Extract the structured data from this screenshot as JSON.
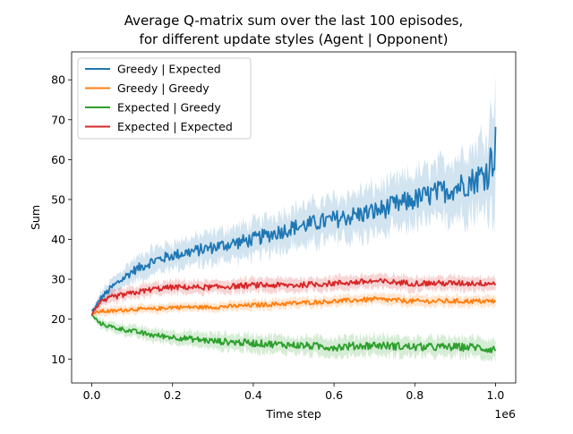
{
  "chart_data": {
    "type": "line",
    "title": [
      "Average Q-matrix sum over the last 100 episodes,",
      "for different update styles (Agent | Opponent)"
    ],
    "xlabel": "Time step",
    "ylabel": "Sum",
    "x_offset_text": "1e6",
    "xlim": [
      -0.05,
      1.05
    ],
    "ylim": [
      4,
      87
    ],
    "x_ticks": [
      0.0,
      0.2,
      0.4,
      0.6,
      0.8,
      1.0
    ],
    "x_tick_labels": [
      "0.0",
      "0.2",
      "0.4",
      "0.6",
      "0.8",
      "1.0"
    ],
    "y_ticks": [
      10,
      20,
      30,
      40,
      50,
      60,
      70,
      80
    ],
    "y_tick_labels": [
      "10",
      "20",
      "30",
      "40",
      "50",
      "60",
      "70",
      "80"
    ],
    "grid": false,
    "legend_position": "top-left",
    "x": [
      0.0,
      0.01,
      0.02,
      0.05,
      0.1,
      0.15,
      0.2,
      0.3,
      0.4,
      0.5,
      0.6,
      0.7,
      0.8,
      0.9,
      0.95,
      0.98,
      1.0
    ],
    "series": [
      {
        "name": "Greedy | Expected",
        "color": "#1f77b4",
        "values": [
          22,
          23,
          25,
          28,
          32,
          34.5,
          36,
          38,
          40,
          43,
          45,
          47,
          50,
          53,
          55,
          57,
          63
        ],
        "band": [
          0.5,
          1,
          1.5,
          2,
          2.5,
          3,
          3,
          3.5,
          4,
          4.5,
          5,
          5.5,
          6,
          7,
          8,
          10,
          14
        ]
      },
      {
        "name": "Greedy | Greedy",
        "color": "#ff7f0e",
        "values": [
          21.5,
          21.5,
          22,
          22,
          22.5,
          22.5,
          23,
          23,
          23.5,
          24,
          24.5,
          25,
          24.5,
          24.5,
          24.5,
          24.5,
          24.5
        ],
        "band": [
          0.5,
          0.8,
          1,
          1,
          1,
          1,
          1,
          1,
          1.2,
          1.2,
          1.2,
          1.3,
          1.3,
          1.3,
          1.3,
          1.3,
          1.3
        ]
      },
      {
        "name": "Expected | Greedy",
        "color": "#2ca02c",
        "values": [
          21,
          20,
          19,
          18,
          17,
          16,
          15.5,
          14.5,
          14,
          13.5,
          13,
          13.5,
          13,
          13,
          13,
          12.5,
          12.5
        ],
        "band": [
          0.5,
          0.8,
          1,
          1.2,
          1.3,
          1.5,
          1.5,
          1.8,
          2,
          2,
          2.2,
          2.2,
          2.2,
          2.2,
          2.2,
          2.2,
          2.2
        ]
      },
      {
        "name": "Expected | Expected",
        "color": "#d62728",
        "values": [
          21,
          23,
          24,
          25.5,
          26.5,
          27.5,
          28,
          28,
          28.5,
          28.5,
          29,
          29.5,
          29,
          29,
          29,
          29,
          29
        ],
        "band": [
          0.5,
          1,
          1.2,
          1.5,
          1.5,
          1.5,
          1.5,
          1.5,
          1.6,
          1.6,
          1.6,
          1.6,
          1.6,
          1.6,
          1.6,
          1.6,
          1.6
        ]
      }
    ]
  }
}
